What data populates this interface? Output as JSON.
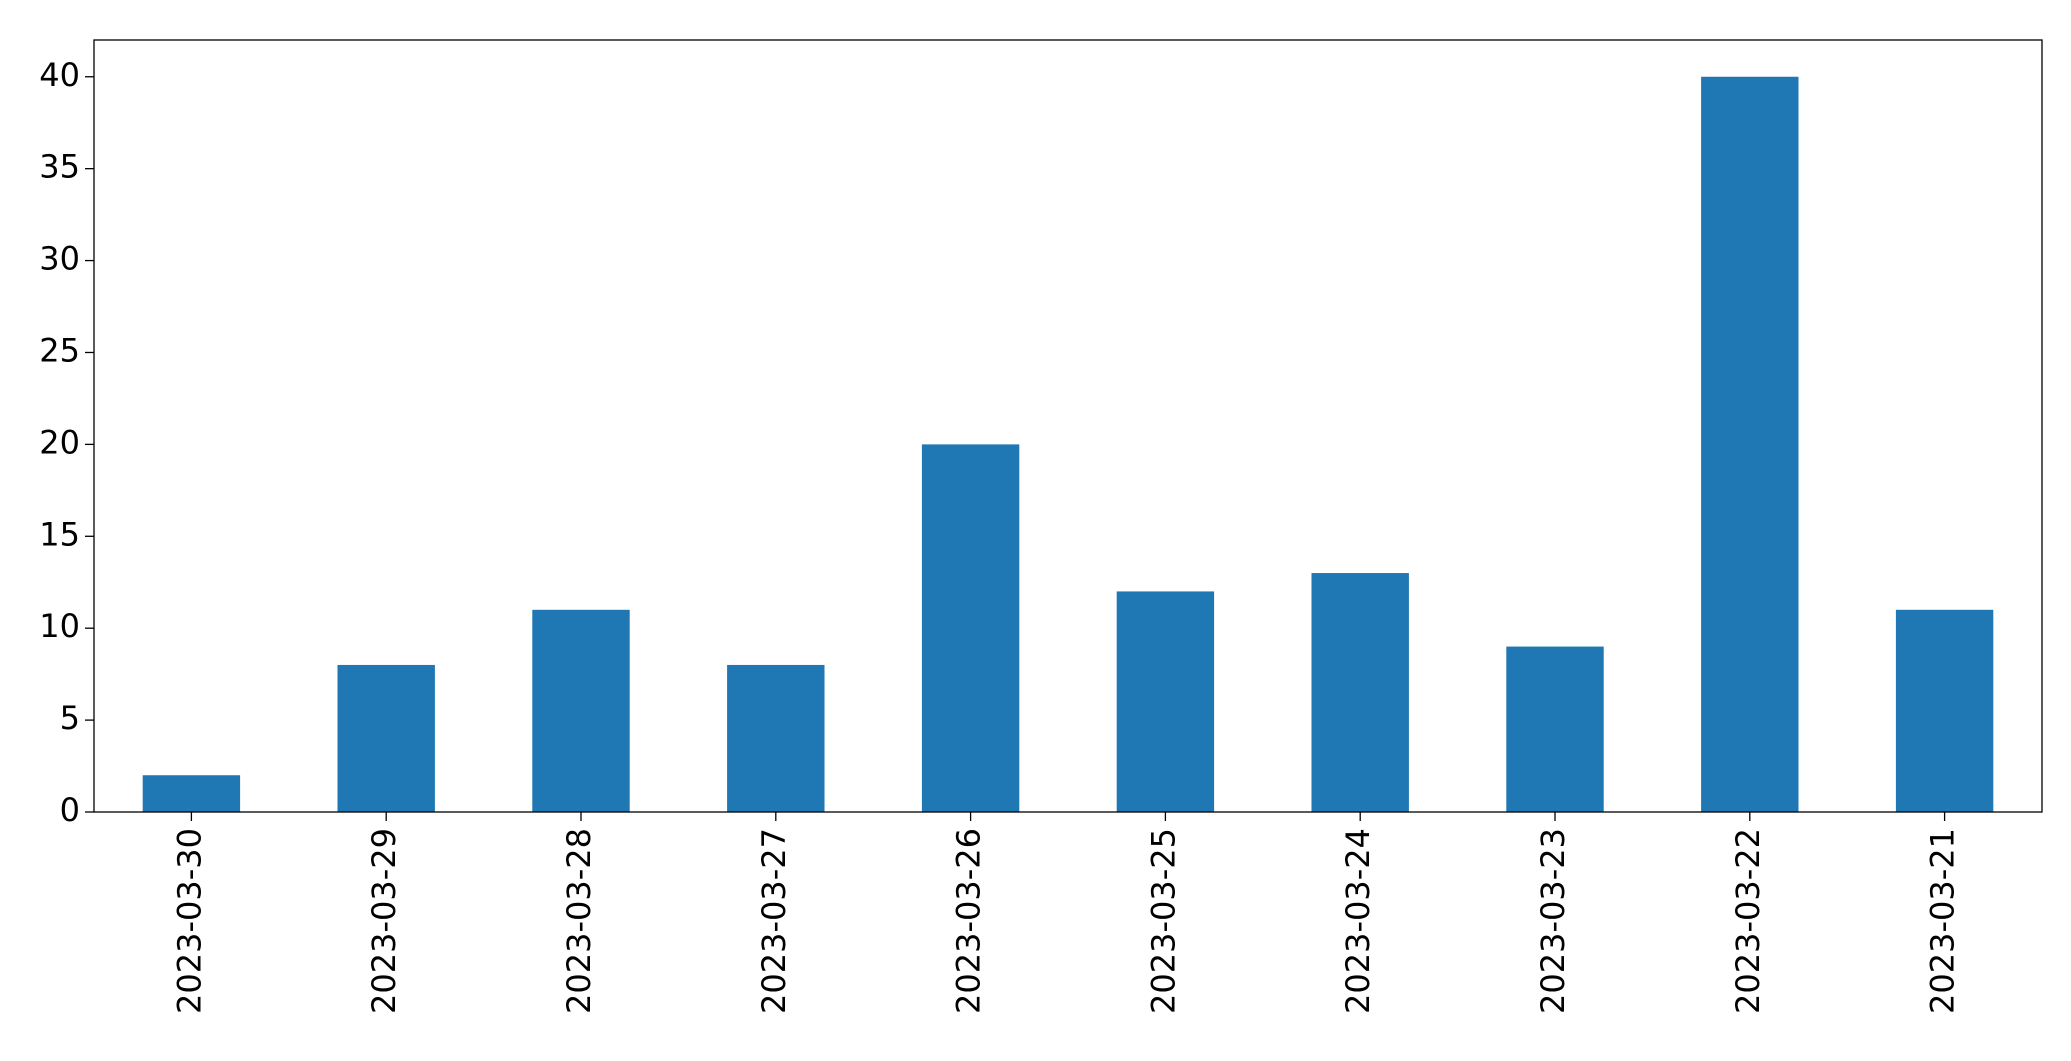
{
  "chart_data": {
    "type": "bar",
    "categories": [
      "2023-03-30",
      "2023-03-29",
      "2023-03-28",
      "2023-03-27",
      "2023-03-26",
      "2023-03-25",
      "2023-03-24",
      "2023-03-23",
      "2023-03-22",
      "2023-03-21"
    ],
    "values": [
      2,
      8,
      11,
      8,
      20,
      12,
      13,
      9,
      40,
      11
    ],
    "color": "#1f77b4",
    "ylim": [
      0,
      42
    ],
    "yticks": [
      0,
      5,
      10,
      15,
      20,
      25,
      30,
      35,
      40
    ],
    "grid": false
  }
}
